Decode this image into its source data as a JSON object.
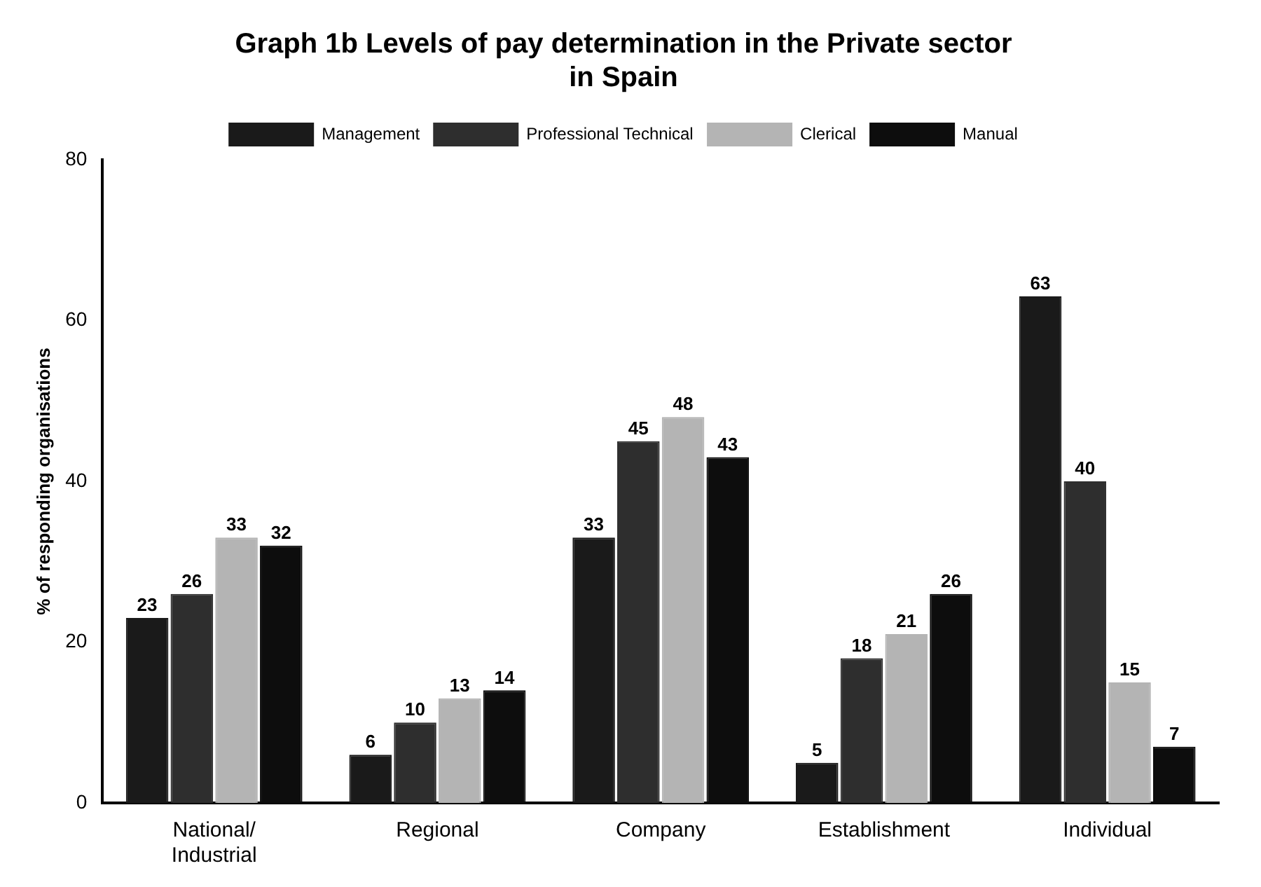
{
  "chart_data": {
    "type": "bar",
    "title": "Graph 1b Levels of pay determination in the Private sector\nin Spain",
    "categories": [
      "National/\nIndustrial",
      "Regional",
      "Company",
      "Establishment",
      "Individual"
    ],
    "series": [
      {
        "name": "Management",
        "color": "#1a1a1a",
        "values": [
          23,
          6,
          33,
          5,
          63
        ]
      },
      {
        "name": "Professional\nTechnical",
        "color": "#2e2e2e",
        "values": [
          26,
          10,
          45,
          18,
          40
        ]
      },
      {
        "name": "Clerical",
        "color": "#b4b4b4",
        "values": [
          33,
          13,
          48,
          21,
          15
        ]
      },
      {
        "name": "Manual",
        "color": "#0d0d0d",
        "values": [
          32,
          14,
          43,
          26,
          7
        ]
      }
    ],
    "ylabel": "% of responding organisations",
    "ylim": [
      0,
      80
    ],
    "yticks": [
      0,
      20,
      40,
      60,
      80
    ],
    "grid": false,
    "legend": "top",
    "data_labels": true
  }
}
